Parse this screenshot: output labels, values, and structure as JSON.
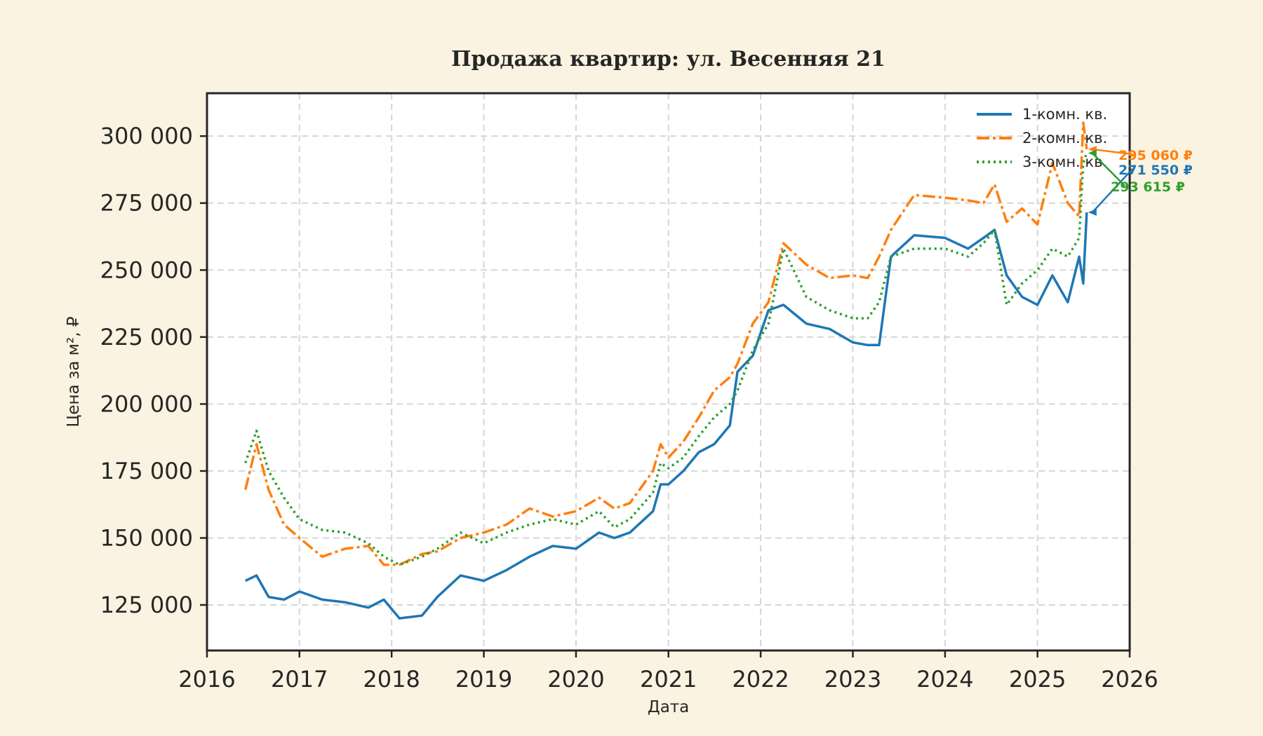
{
  "colors": {
    "background": "#fbf3e1",
    "plot_bg": "#ffffff",
    "grid": "#d6d6d6",
    "frame": "#262626",
    "series": [
      "#1f77b4",
      "#ff7f0e",
      "#2ca02c"
    ]
  },
  "chart_data": {
    "type": "line",
    "title": "Продажа квартир: ул. Весенняя 21",
    "xlabel": "Дата",
    "ylabel": "Цена за м², ₽",
    "grid": true,
    "legend_position": "top-right",
    "xlim": [
      "2016-01-01",
      "2026-01-01"
    ],
    "ylim": [
      108000,
      316000
    ],
    "x_ticks": [
      "2016",
      "2017",
      "2018",
      "2019",
      "2020",
      "2021",
      "2022",
      "2023",
      "2024",
      "2025",
      "2026"
    ],
    "y_ticks": [
      125000,
      150000,
      175000,
      200000,
      225000,
      250000,
      275000,
      300000
    ],
    "y_tick_labels": [
      "125 000",
      "150 000",
      "175 000",
      "200 000",
      "225 000",
      "250 000",
      "275 000",
      "300 000"
    ],
    "series": [
      {
        "name": "1-комн. кв.",
        "style": "solid",
        "x": [
          "2016-06-01",
          "2016-07-15",
          "2016-09-01",
          "2016-11-01",
          "2017-01-01",
          "2017-04-01",
          "2017-07-01",
          "2017-10-01",
          "2017-12-01",
          "2018-02-01",
          "2018-05-01",
          "2018-07-01",
          "2018-10-01",
          "2019-01-01",
          "2019-04-01",
          "2019-07-01",
          "2019-10-01",
          "2020-01-01",
          "2020-04-01",
          "2020-06-01",
          "2020-08-01",
          "2020-11-01",
          "2020-12-01",
          "2021-01-01",
          "2021-03-01",
          "2021-05-01",
          "2021-07-01",
          "2021-09-01",
          "2021-10-01",
          "2021-12-01",
          "2022-02-01",
          "2022-04-01",
          "2022-07-01",
          "2022-10-01",
          "2023-01-01",
          "2023-03-01",
          "2023-04-15",
          "2023-06-01",
          "2023-09-01",
          "2024-01-01",
          "2024-04-01",
          "2024-06-01",
          "2024-07-15",
          "2024-09-01",
          "2024-11-01",
          "2025-01-01",
          "2025-03-01",
          "2025-05-01",
          "2025-06-15",
          "2025-07-01",
          "2025-07-15"
        ],
        "y": [
          134000,
          136000,
          128000,
          127000,
          130000,
          127000,
          126000,
          124000,
          127000,
          120000,
          121000,
          128000,
          136000,
          134000,
          138000,
          143000,
          147000,
          146000,
          152000,
          150000,
          152000,
          160000,
          170000,
          170000,
          175000,
          182000,
          185000,
          192000,
          212000,
          218000,
          235000,
          237000,
          230000,
          228000,
          223000,
          222000,
          222000,
          255000,
          263000,
          262000,
          258000,
          262000,
          265000,
          248000,
          240000,
          237000,
          248000,
          238000,
          255000,
          245000,
          271550
        ]
      },
      {
        "name": "2-комн. кв.",
        "style": "dashdot",
        "x": [
          "2016-06-01",
          "2016-07-15",
          "2016-09-01",
          "2016-11-01",
          "2017-01-01",
          "2017-04-01",
          "2017-07-01",
          "2017-10-01",
          "2017-12-01",
          "2018-02-01",
          "2018-05-01",
          "2018-07-01",
          "2018-10-01",
          "2019-01-01",
          "2019-04-01",
          "2019-07-01",
          "2019-10-01",
          "2020-01-01",
          "2020-04-01",
          "2020-06-01",
          "2020-08-01",
          "2020-11-01",
          "2020-12-01",
          "2021-01-01",
          "2021-03-01",
          "2021-05-01",
          "2021-07-01",
          "2021-09-01",
          "2021-10-01",
          "2021-12-01",
          "2022-02-01",
          "2022-04-01",
          "2022-07-01",
          "2022-10-01",
          "2023-01-01",
          "2023-03-01",
          "2023-04-15",
          "2023-06-01",
          "2023-09-01",
          "2024-01-01",
          "2024-04-01",
          "2024-06-01",
          "2024-07-15",
          "2024-09-01",
          "2024-11-01",
          "2025-01-01",
          "2025-03-01",
          "2025-05-01",
          "2025-06-15",
          "2025-07-01",
          "2025-07-15"
        ],
        "y": [
          168000,
          185000,
          168000,
          155000,
          150000,
          143000,
          146000,
          147000,
          140000,
          140000,
          144000,
          145000,
          150000,
          152000,
          155000,
          161000,
          158000,
          160000,
          165000,
          161000,
          163000,
          175000,
          185000,
          180000,
          186000,
          195000,
          205000,
          210000,
          215000,
          230000,
          238000,
          260000,
          252000,
          247000,
          248000,
          247000,
          255000,
          265000,
          278000,
          277000,
          276000,
          275000,
          282000,
          268000,
          273000,
          267000,
          290000,
          275000,
          270000,
          305000,
          295060
        ]
      },
      {
        "name": "3-комн. кв.",
        "style": "dotted",
        "x": [
          "2016-06-01",
          "2016-07-15",
          "2016-09-01",
          "2016-11-01",
          "2017-01-01",
          "2017-04-01",
          "2017-07-01",
          "2017-10-01",
          "2017-12-01",
          "2018-02-01",
          "2018-05-01",
          "2018-07-01",
          "2018-10-01",
          "2019-01-01",
          "2019-04-01",
          "2019-07-01",
          "2019-10-01",
          "2020-01-01",
          "2020-04-01",
          "2020-06-01",
          "2020-08-01",
          "2020-11-01",
          "2020-12-01",
          "2021-01-01",
          "2021-03-01",
          "2021-05-01",
          "2021-07-01",
          "2021-09-01",
          "2021-10-01",
          "2021-12-01",
          "2022-02-01",
          "2022-04-01",
          "2022-07-01",
          "2022-10-01",
          "2023-01-01",
          "2023-03-01",
          "2023-04-15",
          "2023-06-01",
          "2023-09-01",
          "2024-01-01",
          "2024-04-01",
          "2024-06-01",
          "2024-07-15",
          "2024-09-01",
          "2024-11-01",
          "2025-01-01",
          "2025-03-01",
          "2025-05-01",
          "2025-06-15",
          "2025-07-01",
          "2025-07-15"
        ],
        "y": [
          178000,
          190000,
          175000,
          165000,
          157000,
          153000,
          152000,
          148000,
          143000,
          140000,
          143000,
          146000,
          152000,
          148000,
          152000,
          155000,
          157000,
          155000,
          160000,
          154000,
          157000,
          167000,
          178000,
          176000,
          180000,
          188000,
          195000,
          200000,
          205000,
          220000,
          230000,
          258000,
          240000,
          235000,
          232000,
          232000,
          238000,
          255000,
          258000,
          258000,
          255000,
          260000,
          265000,
          237000,
          245000,
          250000,
          258000,
          255000,
          262000,
          290000,
          293615
        ]
      }
    ],
    "annotations": [
      {
        "series": 1,
        "label": "295 060 ₽"
      },
      {
        "series": 0,
        "label": "271 550 ₽"
      },
      {
        "series": 2,
        "label": "293 615 ₽"
      }
    ]
  }
}
